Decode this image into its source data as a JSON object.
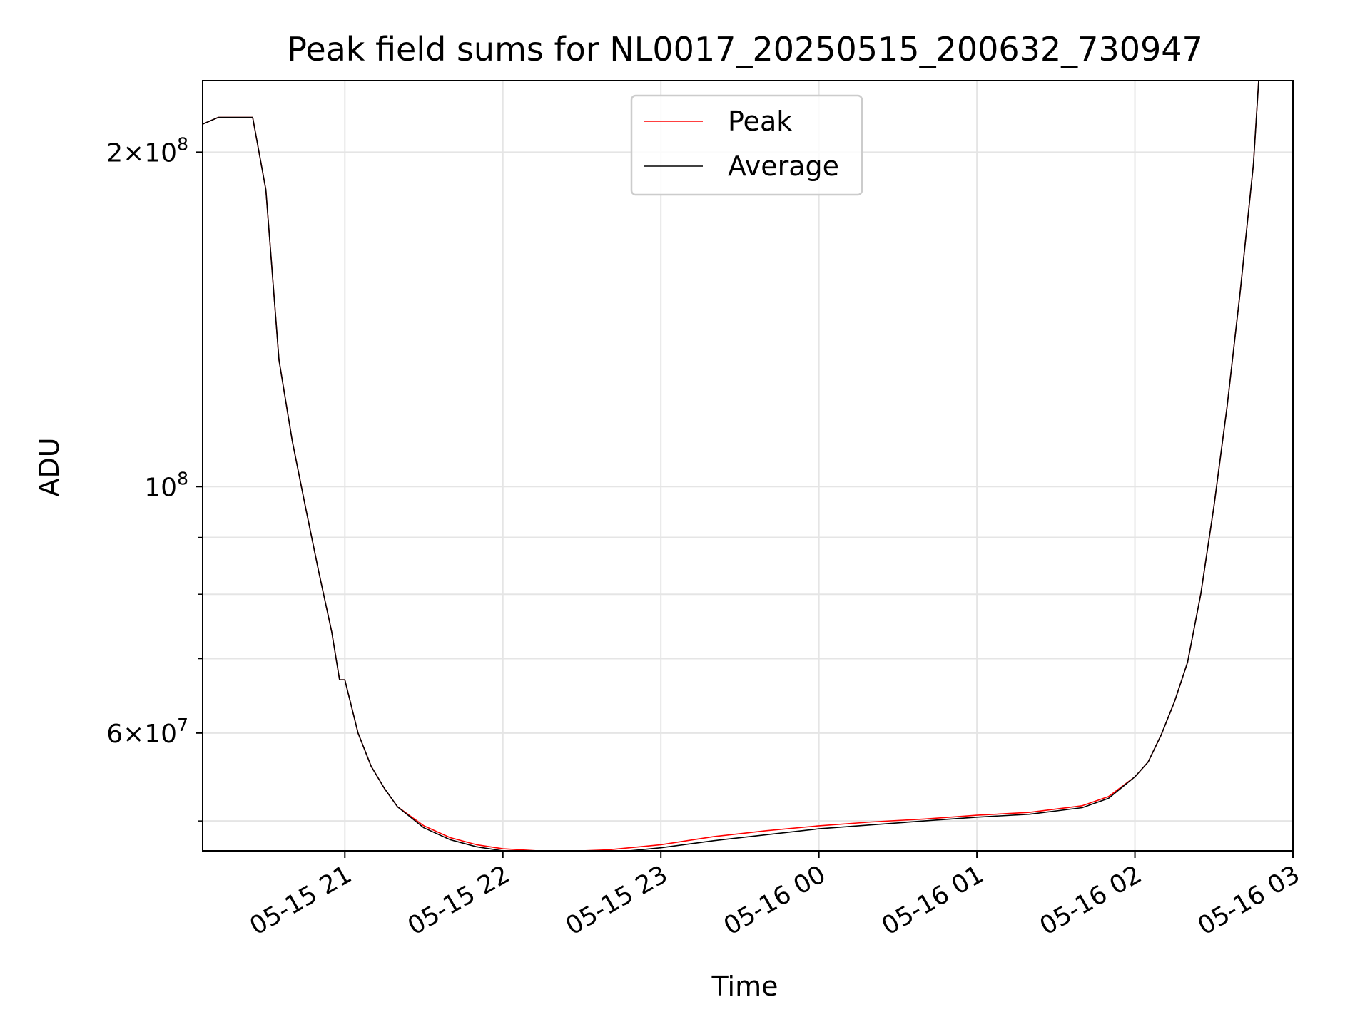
{
  "chart_data": {
    "type": "line",
    "title": "Peak field sums for NL0017_20250515_200632_730947",
    "xlabel": "Time",
    "ylabel": "ADU",
    "yscale": "log",
    "grid": true,
    "legend_position": "upper center",
    "xlim": [
      "2025-05-15T20:06",
      "2025-05-16T03:00"
    ],
    "ylim": [
      47000000,
      232000000
    ],
    "x_ticks": [
      {
        "label": "05-15 21",
        "value": "2025-05-15T21:00"
      },
      {
        "label": "05-15 22",
        "value": "2025-05-15T22:00"
      },
      {
        "label": "05-15 23",
        "value": "2025-05-15T23:00"
      },
      {
        "label": "05-16 00",
        "value": "2025-05-16T00:00"
      },
      {
        "label": "05-16 01",
        "value": "2025-05-16T01:00"
      },
      {
        "label": "05-16 02",
        "value": "2025-05-16T02:00"
      },
      {
        "label": "05-16 03",
        "value": "2025-05-16T03:00"
      }
    ],
    "y_major_ticks": [
      {
        "mantissa": "",
        "exponent": "8",
        "value": 100000000
      },
      {
        "mantissa": "2×",
        "exponent": "8",
        "value": 200000000
      },
      {
        "mantissa": "6×",
        "exponent": "7",
        "value": 60000000
      }
    ],
    "y_minor_ticks": [
      50000000,
      70000000,
      80000000,
      90000000
    ],
    "series": [
      {
        "name": "Peak",
        "color": "#ff0000",
        "x": [
          "2025-05-15T20:06",
          "2025-05-15T20:12",
          "2025-05-15T20:18",
          "2025-05-15T20:25",
          "2025-05-15T20:30",
          "2025-05-15T20:35",
          "2025-05-15T20:40",
          "2025-05-15T20:45",
          "2025-05-15T20:50",
          "2025-05-15T20:55",
          "2025-05-15T20:58",
          "2025-05-15T21:00",
          "2025-05-15T21:05",
          "2025-05-15T21:10",
          "2025-05-15T21:15",
          "2025-05-15T21:20",
          "2025-05-15T21:30",
          "2025-05-15T21:40",
          "2025-05-15T21:50",
          "2025-05-15T22:00",
          "2025-05-15T22:20",
          "2025-05-15T22:40",
          "2025-05-15T23:00",
          "2025-05-15T23:20",
          "2025-05-15T23:40",
          "2025-05-16T00:00",
          "2025-05-16T00:20",
          "2025-05-16T00:40",
          "2025-05-16T01:00",
          "2025-05-16T01:20",
          "2025-05-16T01:40",
          "2025-05-16T01:50",
          "2025-05-16T02:00",
          "2025-05-16T02:05",
          "2025-05-16T02:10",
          "2025-05-16T02:15",
          "2025-05-16T02:20",
          "2025-05-16T02:25",
          "2025-05-16T02:30",
          "2025-05-16T02:35",
          "2025-05-16T02:40",
          "2025-05-16T02:45",
          "2025-05-16T02:47"
        ],
        "y": [
          212000000,
          215000000,
          215000000,
          215000000,
          185000000,
          130000000,
          110000000,
          96000000,
          84000000,
          74000000,
          67000000,
          67000000,
          60000000,
          56000000,
          53500000,
          51500000,
          49500000,
          48300000,
          47600000,
          47200000,
          46900000,
          47100000,
          47600000,
          48400000,
          49000000,
          49500000,
          49900000,
          50200000,
          50600000,
          50900000,
          51600000,
          52600000,
          54800000,
          56500000,
          59800000,
          64000000,
          69500000,
          80000000,
          96000000,
          118000000,
          150000000,
          195000000,
          232000000
        ]
      },
      {
        "name": "Average",
        "color": "#000000",
        "x": [
          "2025-05-15T20:06",
          "2025-05-15T20:12",
          "2025-05-15T20:18",
          "2025-05-15T20:25",
          "2025-05-15T20:30",
          "2025-05-15T20:35",
          "2025-05-15T20:40",
          "2025-05-15T20:45",
          "2025-05-15T20:50",
          "2025-05-15T20:55",
          "2025-05-15T20:58",
          "2025-05-15T21:00",
          "2025-05-15T21:05",
          "2025-05-15T21:10",
          "2025-05-15T21:15",
          "2025-05-15T21:20",
          "2025-05-15T21:30",
          "2025-05-15T21:40",
          "2025-05-15T21:50",
          "2025-05-15T22:00",
          "2025-05-15T22:20",
          "2025-05-15T22:40",
          "2025-05-15T23:00",
          "2025-05-15T23:20",
          "2025-05-15T23:40",
          "2025-05-16T00:00",
          "2025-05-16T00:20",
          "2025-05-16T00:40",
          "2025-05-16T01:00",
          "2025-05-16T01:20",
          "2025-05-16T01:40",
          "2025-05-16T01:50",
          "2025-05-16T02:00",
          "2025-05-16T02:05",
          "2025-05-16T02:10",
          "2025-05-16T02:15",
          "2025-05-16T02:20",
          "2025-05-16T02:25",
          "2025-05-16T02:30",
          "2025-05-16T02:35",
          "2025-05-16T02:40",
          "2025-05-16T02:45",
          "2025-05-16T02:47"
        ],
        "y": [
          212000000,
          215000000,
          215000000,
          215000000,
          185000000,
          130000000,
          110000000,
          96000000,
          84000000,
          74000000,
          67000000,
          67000000,
          60000000,
          56000000,
          53500000,
          51500000,
          49300000,
          48100000,
          47400000,
          47000000,
          46700000,
          46800000,
          47300000,
          48000000,
          48600000,
          49200000,
          49600000,
          50000000,
          50400000,
          50700000,
          51400000,
          52400000,
          54800000,
          56500000,
          59800000,
          64000000,
          69500000,
          80000000,
          96000000,
          118000000,
          150000000,
          195000000,
          232000000
        ]
      }
    ]
  }
}
